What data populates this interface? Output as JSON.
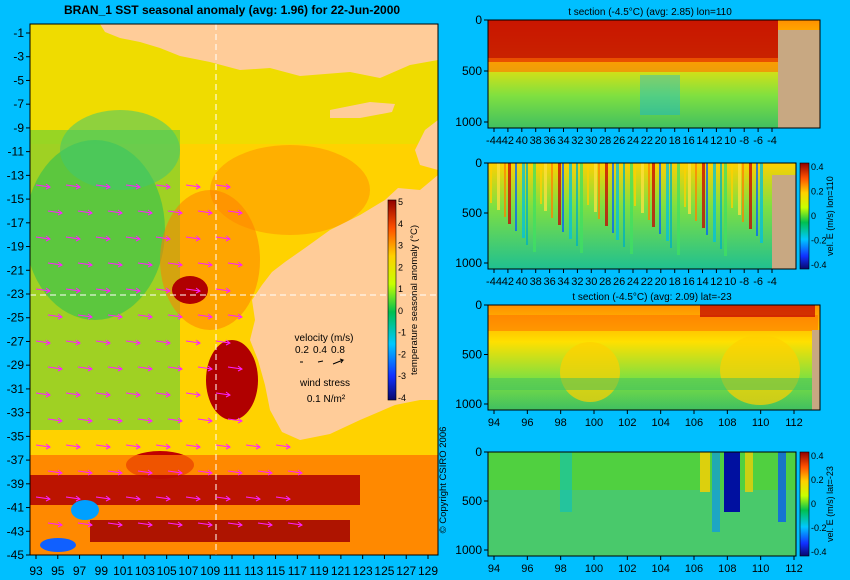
{
  "chart_data": [
    {
      "type": "heatmap",
      "title": "BRAN_1 SST seasonal anomaly (avg: 1.96) for 22-Jun-2000",
      "x_ticks": [
        "93",
        "95",
        "97",
        "99",
        "101",
        "103",
        "105",
        "107",
        "109",
        "111",
        "113",
        "115",
        "117",
        "119",
        "121",
        "123",
        "125",
        "127",
        "129"
      ],
      "y_ticks": [
        "-1",
        "-3",
        "-5",
        "-7",
        "-9",
        "-11",
        "-13",
        "-15",
        "-17",
        "-19",
        "-21",
        "-23",
        "-25",
        "-27",
        "-29",
        "-31",
        "-33",
        "-35",
        "-37",
        "-39",
        "-41",
        "-43",
        "-45"
      ],
      "xlim": [
        93,
        130
      ],
      "ylim": [
        -45,
        0
      ],
      "colorbar": {
        "label": "temperature seasonal anomaly (°C)",
        "ticks": [
          "5",
          "4",
          "3",
          "2",
          "1",
          "0",
          "-1",
          "-2",
          "-3",
          "-4"
        ],
        "range": [
          -4,
          5
        ]
      },
      "legend": {
        "velocity_label": "velocity (m/s)",
        "velocity_values": [
          "0.2",
          "0.4",
          "0.8"
        ],
        "wind_label": "wind stress",
        "wind_value": "0.1 N/m²"
      },
      "copyright": "© Copyright CSIRO 2006"
    },
    {
      "type": "heatmap",
      "title": "t section (-4.5°C) (avg: 2.85) lon=110",
      "x_ticks": [
        "-44",
        "42",
        "40",
        "38",
        "36",
        "34",
        "32",
        "30",
        "28",
        "26",
        "24",
        "22",
        "20",
        "18",
        "16",
        "14",
        "12",
        "10",
        "-8",
        "-6",
        "-4"
      ],
      "y_ticks": [
        "0",
        "500",
        "1000"
      ]
    },
    {
      "type": "heatmap",
      "title": "",
      "x_ticks": [
        "-44",
        "42",
        "40",
        "38",
        "36",
        "34",
        "32",
        "30",
        "28",
        "26",
        "24",
        "22",
        "20",
        "18",
        "16",
        "14",
        "12",
        "10",
        "-8",
        "-6",
        "-4"
      ],
      "y_ticks": [
        "0",
        "500",
        "1000"
      ],
      "colorbar": {
        "label": "vel. E (m/s) lon=110",
        "ticks": [
          "0.4",
          "0.2",
          "0",
          "-0.2",
          "-0.4"
        ]
      }
    },
    {
      "type": "heatmap",
      "title": "t section (-4.5°C) (avg: 2.09) lat=-23",
      "x_ticks": [
        "94",
        "96",
        "98",
        "100",
        "102",
        "104",
        "106",
        "108",
        "110",
        "112"
      ],
      "y_ticks": [
        "0",
        "500",
        "1000"
      ]
    },
    {
      "type": "heatmap",
      "title": "",
      "x_ticks": [
        "94",
        "96",
        "98",
        "100",
        "102",
        "104",
        "106",
        "108",
        "110",
        "112"
      ],
      "y_ticks": [
        "0",
        "500",
        "1000"
      ],
      "colorbar": {
        "label": "vel. E (m/s) lat=-23",
        "ticks": [
          "0.4",
          "0.2",
          "0",
          "-0.2",
          "-0.4"
        ]
      }
    }
  ]
}
